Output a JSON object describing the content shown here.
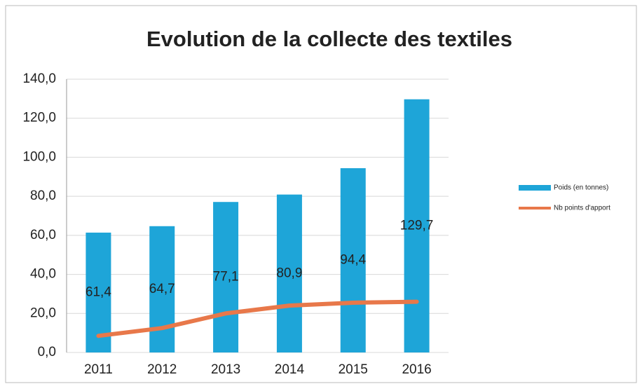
{
  "chart_data": {
    "type": "bar",
    "title": "Evolution de la collecte des textiles",
    "categories": [
      "2011",
      "2012",
      "2013",
      "2014",
      "2015",
      "2016"
    ],
    "series": [
      {
        "name": "Poids (en tonnes)",
        "type": "bar",
        "color": "#1ea5d8",
        "values": [
          61.4,
          64.7,
          77.1,
          80.9,
          94.4,
          129.7
        ],
        "value_labels": [
          "61,4",
          "64,7",
          "77,1",
          "80,9",
          "94,4",
          "129,7"
        ]
      },
      {
        "name": "Nb points d'apport",
        "type": "line",
        "color": "#e8784a",
        "values": [
          8.5,
          12.5,
          20,
          24,
          25.5,
          26
        ]
      }
    ],
    "ylim": [
      0,
      140
    ],
    "yticks": [
      {
        "value": 0,
        "label": "0,0"
      },
      {
        "value": 20,
        "label": "20,0"
      },
      {
        "value": 40,
        "label": "40,0"
      },
      {
        "value": 60,
        "label": "60,0"
      },
      {
        "value": 80,
        "label": "80,0"
      },
      {
        "value": 100,
        "label": "100,0"
      },
      {
        "value": 120,
        "label": "120,0"
      },
      {
        "value": 140,
        "label": "140,0"
      }
    ],
    "grid": true,
    "legend": "right"
  }
}
